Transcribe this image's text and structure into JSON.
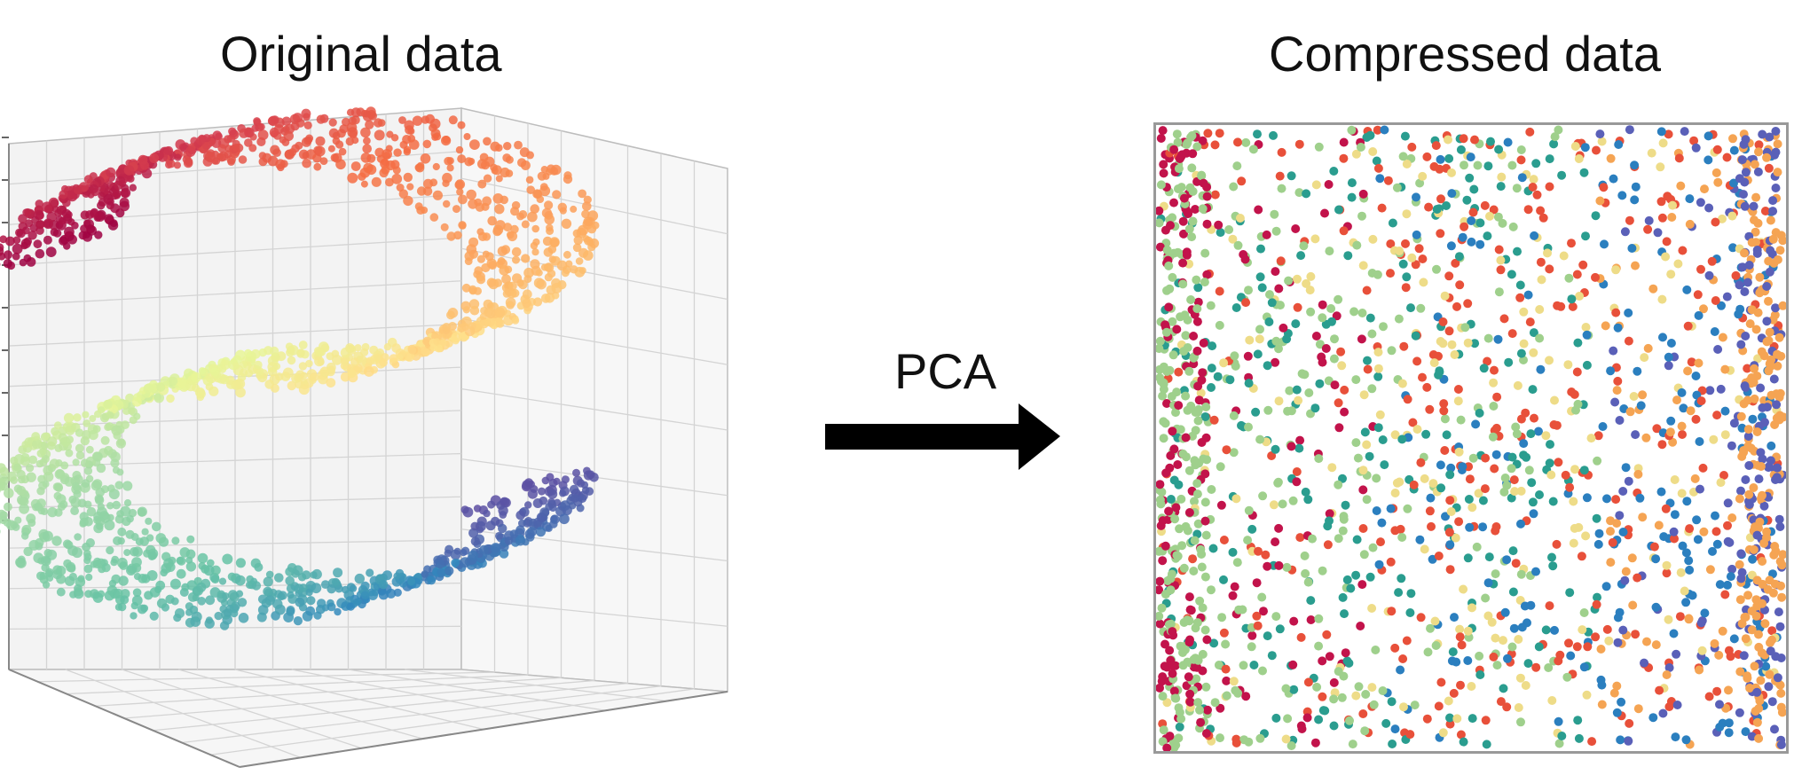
{
  "left_title": "Original data",
  "right_title": "Compressed data",
  "arrow_label": "PCA",
  "colors": {
    "palette_spectral": [
      "#9e0142",
      "#d53e4f",
      "#f46d43",
      "#fdae61",
      "#fee08b",
      "#e6f598",
      "#abdda4",
      "#66c2a5",
      "#3288bd",
      "#5e4fa2"
    ],
    "scatter_palette": [
      "#c2134b",
      "#9fd08c",
      "#e8503a",
      "#eedc88",
      "#2a9d8f",
      "#2b7fbf",
      "#f5a453",
      "#5a60b8"
    ],
    "arrow": "#000000",
    "frame": "#999999",
    "grid": "#d4d4d4"
  }
}
